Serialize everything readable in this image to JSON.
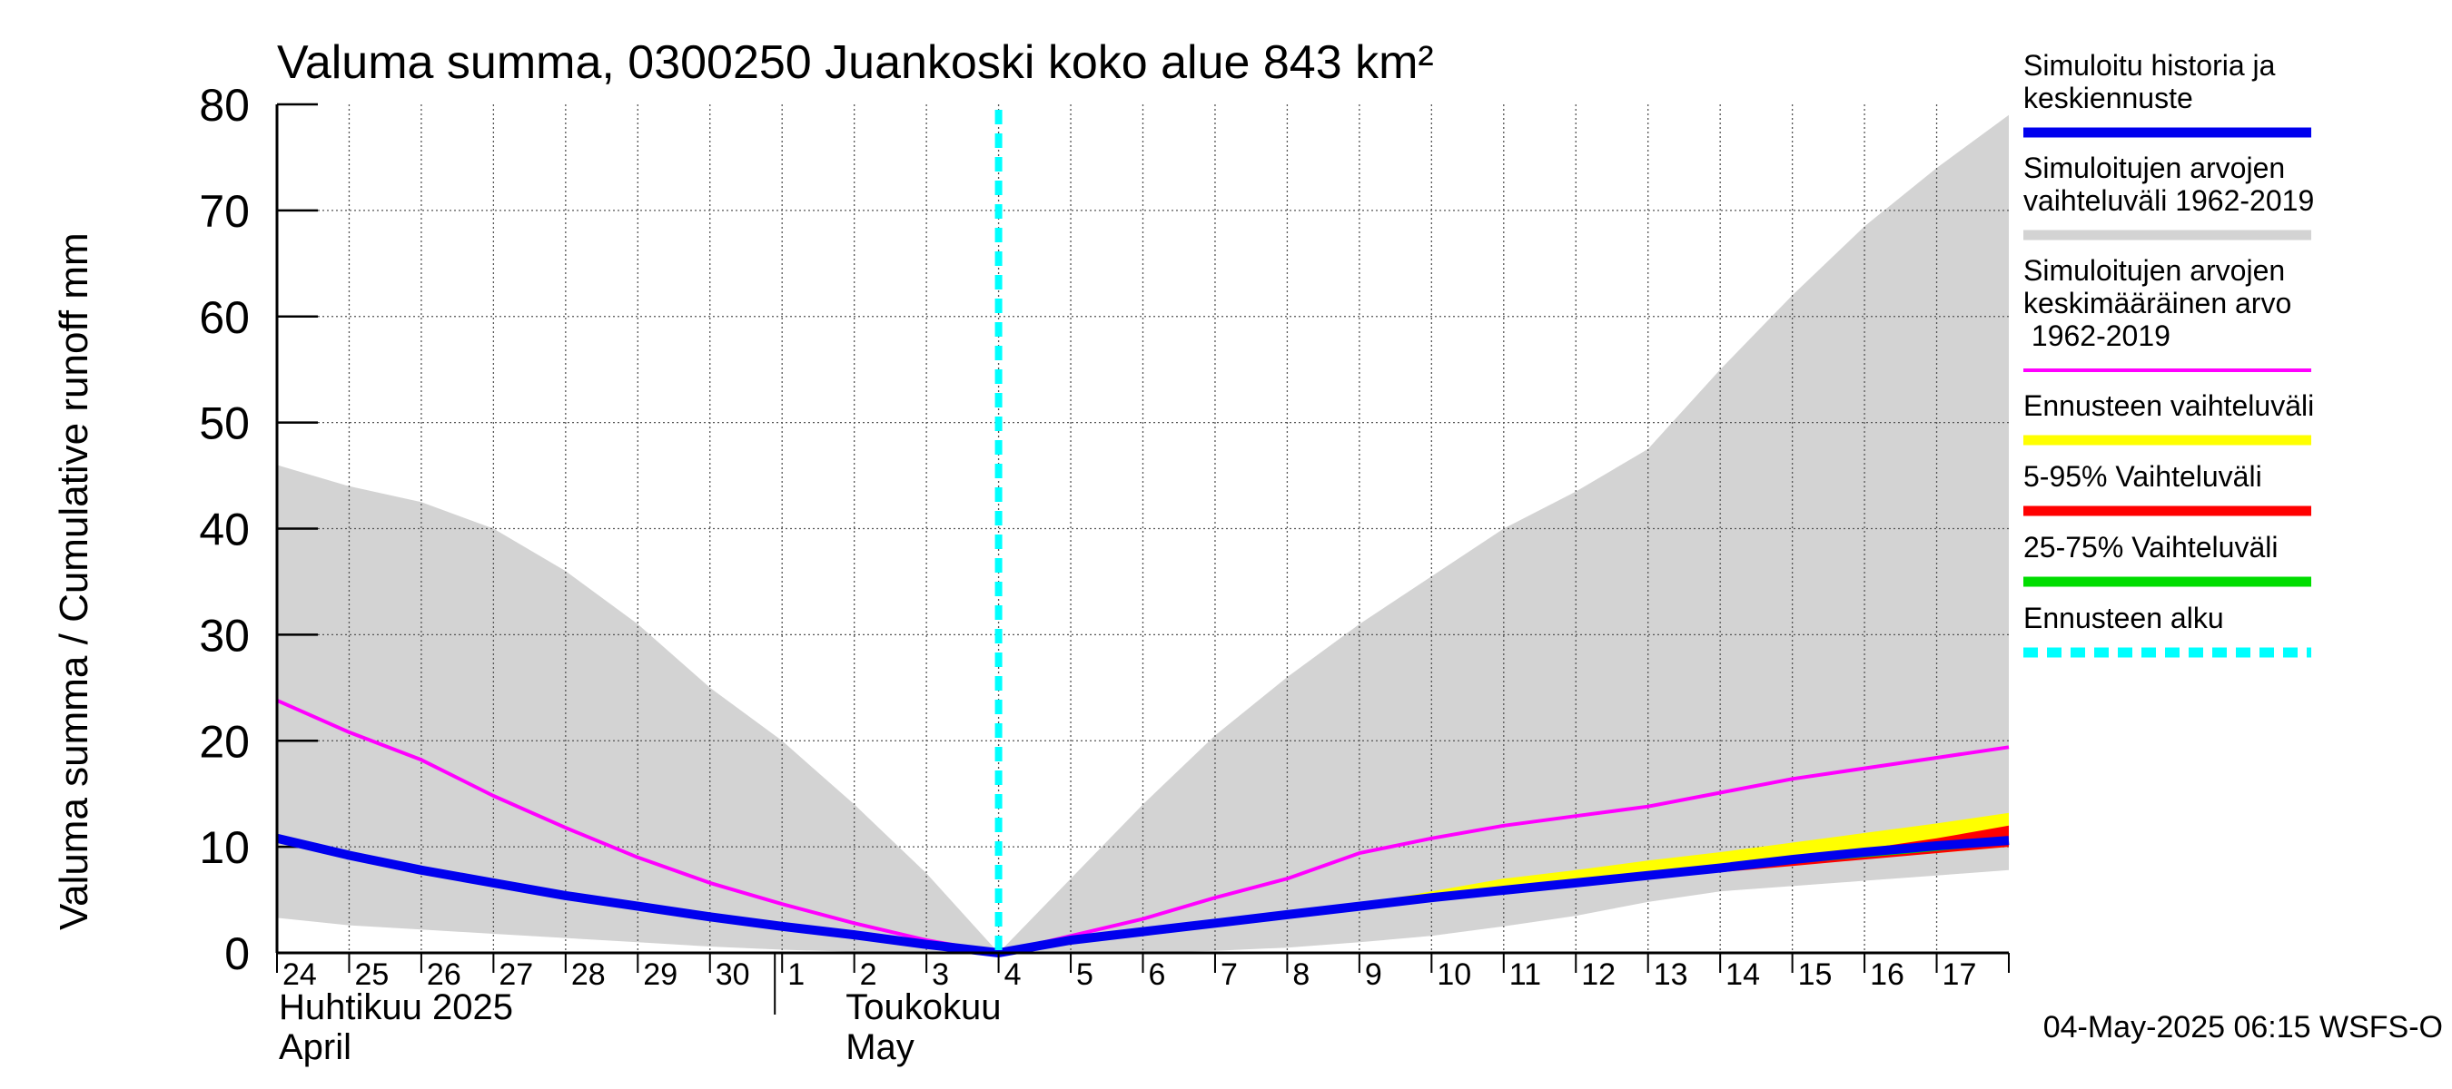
{
  "chart_data": {
    "type": "area",
    "title": "Valuma summa, 0300250 Juankoski koko alue 843 km²",
    "ylabel": "Valuma summa / Cumulative runoff    mm",
    "ylim": [
      0,
      80
    ],
    "y_ticks": [
      0,
      10,
      20,
      30,
      40,
      50,
      60,
      70,
      80
    ],
    "x_range_days": [
      0,
      24
    ],
    "x_tick_labels": [
      "24",
      "25",
      "26",
      "27",
      "28",
      "29",
      "30",
      "1",
      "2",
      "3",
      "4",
      "5",
      "6",
      "7",
      "8",
      "9",
      "10",
      "11",
      "12",
      "13",
      "14",
      "15",
      "16",
      "17"
    ],
    "month_labels": [
      {
        "fi": "Huhtikuu  2025",
        "en": "April",
        "start_day": 0
      },
      {
        "fi": "Toukokuu",
        "en": "May",
        "start_day": 7
      }
    ],
    "forecast_start_day": 10,
    "series": [
      {
        "name": "Simuloitujen arvojen vaihteluväli 1962-2019",
        "kind": "band",
        "color": "#d3d3d3",
        "x": [
          0,
          1,
          2,
          3,
          4,
          5,
          6,
          7,
          8,
          9,
          10,
          11,
          12,
          13,
          14,
          15,
          16,
          17,
          18,
          19,
          20,
          21,
          22,
          23,
          24
        ],
        "upper": [
          46,
          44,
          42.5,
          40,
          36,
          31,
          25,
          20,
          14,
          7.5,
          0,
          7,
          14,
          20.5,
          26,
          31,
          35.5,
          40,
          43.5,
          47.5,
          55,
          62,
          68.5,
          74,
          79
        ],
        "lower": [
          3.3,
          2.6,
          2.2,
          1.8,
          1.4,
          1.0,
          0.6,
          0.3,
          0.1,
          0,
          0,
          0,
          0,
          0.2,
          0.5,
          1.0,
          1.6,
          2.5,
          3.5,
          4.8,
          5.8,
          6.3,
          6.8,
          7.3,
          7.8
        ]
      },
      {
        "name": "Ennusteen vaihteluväli",
        "kind": "band",
        "color": "#ffff00",
        "x": [
          15,
          16,
          17,
          18,
          19,
          20,
          21,
          22,
          23,
          24
        ],
        "upper": [
          4.6,
          5.8,
          7.0,
          7.8,
          8.7,
          9.5,
          10.4,
          11.3,
          12.2,
          13.2
        ],
        "lower": [
          4.3,
          5.2,
          6.0,
          6.6,
          7.2,
          7.8,
          8.3,
          8.9,
          9.4,
          10.0
        ]
      },
      {
        "name": "5-95% Vaihteluväli",
        "kind": "band",
        "color": "#ff0000",
        "x": [
          18,
          19,
          20,
          21,
          22,
          23,
          24
        ],
        "upper": [
          6.6,
          7.3,
          8.0,
          8.8,
          9.8,
          10.8,
          12.0
        ],
        "lower": [
          6.5,
          7.1,
          7.6,
          8.2,
          8.8,
          9.4,
          10.0
        ]
      },
      {
        "name": "25-75% Vaihteluväli",
        "kind": "band",
        "color": "#00dd00",
        "x": [
          18,
          19,
          20,
          21,
          22,
          23,
          24
        ],
        "upper": [
          6.6,
          7.3,
          8.0,
          8.6,
          9.2,
          9.9,
          10.7
        ],
        "lower": [
          6.5,
          7.2,
          7.8,
          8.4,
          9.0,
          9.6,
          10.3
        ]
      },
      {
        "name": "Simuloitujen arvojen keskimääräinen arvo 1962-2019",
        "kind": "line",
        "color": "#ff00ff",
        "x": [
          0,
          1,
          2,
          3,
          4,
          5,
          6,
          7,
          8,
          9,
          10,
          11,
          12,
          13,
          14,
          15,
          16,
          17,
          18,
          19,
          20,
          21,
          22,
          23,
          24
        ],
        "values": [
          23.8,
          20.8,
          18.2,
          14.8,
          11.8,
          9.0,
          6.6,
          4.6,
          2.8,
          1.2,
          0,
          1.6,
          3.2,
          5.2,
          7.0,
          9.4,
          10.8,
          12.0,
          12.9,
          13.8,
          15.1,
          16.4,
          17.4,
          18.4,
          19.4
        ]
      },
      {
        "name": "Simuloitu historia ja keskiennuste",
        "kind": "line",
        "color": "#0000ee",
        "x": [
          0,
          1,
          2,
          3,
          4,
          5,
          6,
          7,
          8,
          9,
          10,
          11,
          12,
          13,
          14,
          15,
          16,
          17,
          18,
          19,
          20,
          21,
          22,
          23,
          24
        ],
        "values": [
          10.8,
          9.2,
          7.8,
          6.6,
          5.4,
          4.4,
          3.4,
          2.5,
          1.7,
          0.8,
          0,
          1.2,
          2.0,
          2.8,
          3.6,
          4.4,
          5.2,
          5.9,
          6.6,
          7.3,
          8.0,
          8.8,
          9.5,
          10.1,
          10.6
        ]
      },
      {
        "name": "Ennusteen alku",
        "kind": "vline",
        "color": "#00ffff",
        "x": 10
      }
    ],
    "legend": {
      "placement": "right",
      "entries": [
        {
          "label": "Simuloitu historia ja keskiennuste",
          "color": "#0000ee",
          "style": "thick"
        },
        {
          "label": "Simuloitujen arvojen vaihteluväli 1962-2019",
          "color": "#d3d3d3",
          "style": "thick"
        },
        {
          "label": "Simuloitujen arvojen keskimääräinen arvo  1962-2019",
          "color": "#ff00ff",
          "style": "thin"
        },
        {
          "label": "Ennusteen vaihteluväli",
          "color": "#ffff00",
          "style": "thick"
        },
        {
          "label": "5-95% Vaihteluväli",
          "color": "#ff0000",
          "style": "thick"
        },
        {
          "label": "25-75% Vaihteluväli",
          "color": "#00dd00",
          "style": "thick"
        },
        {
          "label": "Ennusteen alku",
          "color": "#00ffff",
          "style": "dashed"
        }
      ]
    },
    "footer": "04-May-2025 06:15 WSFS-O"
  }
}
